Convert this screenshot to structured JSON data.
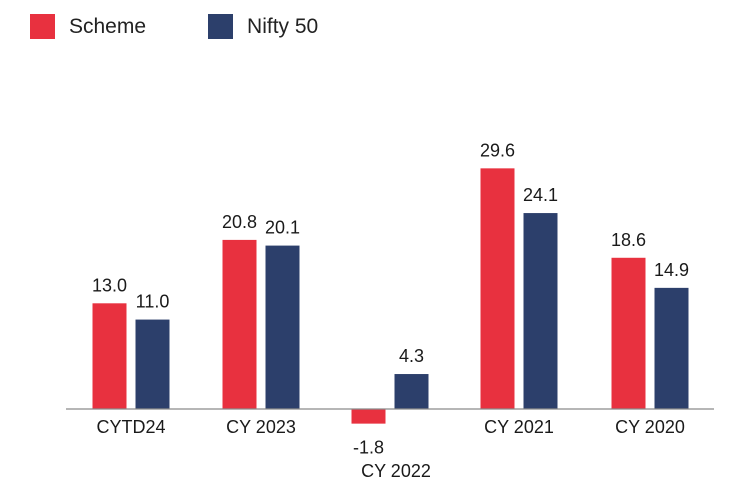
{
  "chart_data": {
    "type": "bar",
    "categories": [
      "CYTD24",
      "CY 2023",
      "CY 2022",
      "CY 2021",
      "CY 2020"
    ],
    "series": [
      {
        "name": "Scheme",
        "values": [
          13.0,
          20.8,
          -1.8,
          29.6,
          18.6
        ],
        "color": "#e8313f"
      },
      {
        "name": "Nifty 50",
        "values": [
          11.0,
          20.1,
          4.3,
          24.1,
          14.9
        ],
        "color": "#2c3f6b"
      }
    ],
    "value_labels": [
      [
        "13.0",
        "20.8",
        "-1.8",
        "29.6",
        "18.6"
      ],
      [
        "11.0",
        "20.1",
        "4.3",
        "24.1",
        "14.9"
      ]
    ],
    "title": "",
    "xlabel": "",
    "ylabel": "",
    "ylim": [
      -2.0,
      32.0
    ],
    "grid": false,
    "legend": "top-left"
  }
}
